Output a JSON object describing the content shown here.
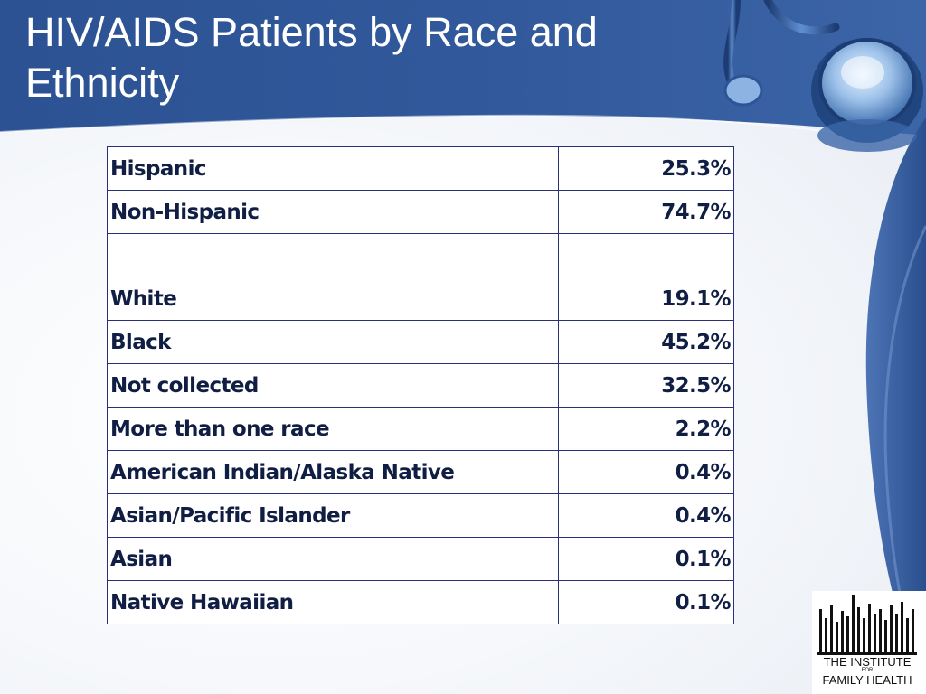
{
  "slide": {
    "title": "HIV/AIDS Patients by Race and Ethnicity"
  },
  "table": {
    "rows": [
      {
        "label": "Hispanic",
        "value": "25.3%"
      },
      {
        "label": "Non-Hispanic",
        "value": "74.7%"
      },
      {
        "label": "",
        "value": ""
      },
      {
        "label": "White",
        "value": "19.1%"
      },
      {
        "label": "Black",
        "value": "45.2%"
      },
      {
        "label": "Not collected",
        "value": "32.5%"
      },
      {
        "label": "More than one race",
        "value": "2.2%"
      },
      {
        "label": "American Indian/Alaska Native",
        "value": "0.4%"
      },
      {
        "label": "Asian/Pacific Islander",
        "value": "0.4%"
      },
      {
        "label": "Asian",
        "value": "0.1%"
      },
      {
        "label": "Native Hawaiian",
        "value": "0.1%"
      }
    ]
  },
  "logo": {
    "line1": "THE INSTITUTE",
    "line2": "FOR",
    "line3": "FAMILY HEALTH"
  },
  "colors": {
    "header_blue": "#2d5596",
    "table_border": "#2b2f78",
    "table_text": "#111e44"
  },
  "icons": {
    "decoration": "stethoscope-icon",
    "logo": "institute-logo"
  }
}
